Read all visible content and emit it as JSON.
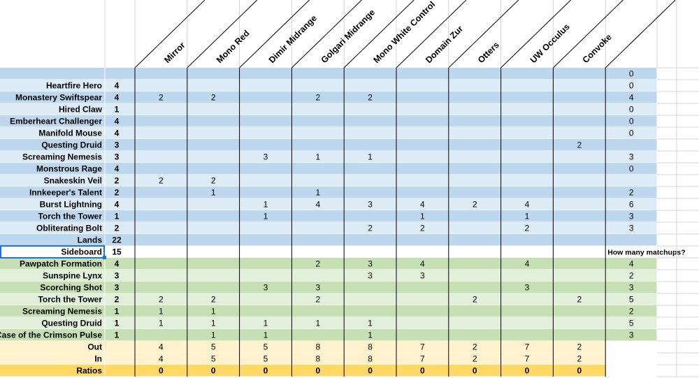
{
  "headers": [
    "Mirror",
    "Mono Red",
    "Dimir Midrange",
    "Golgari Midrange",
    "Mono White Control",
    "Domain Zur",
    "Otters",
    "UW Occulus",
    "Convoke"
  ],
  "rows": [
    {
      "label": "",
      "count": "",
      "cells": [
        "",
        "",
        "",
        "",
        "",
        "",
        "",
        "",
        ""
      ],
      "total": "0",
      "color": "blue_dark"
    },
    {
      "label": "Heartfire Hero",
      "count": "4",
      "cells": [
        "",
        "",
        "",
        "",
        "",
        "",
        "",
        "",
        ""
      ],
      "total": "0",
      "color": "blue_light"
    },
    {
      "label": "Monastery Swiftspear",
      "count": "4",
      "cells": [
        "2",
        "2",
        "",
        "2",
        "2",
        "",
        "",
        "",
        ""
      ],
      "total": "4",
      "color": "blue_dark"
    },
    {
      "label": "Hired Claw",
      "count": "1",
      "cells": [
        "",
        "",
        "",
        "",
        "",
        "",
        "",
        "",
        ""
      ],
      "total": "0",
      "color": "blue_light"
    },
    {
      "label": "Emberheart Challenger",
      "count": "4",
      "cells": [
        "",
        "",
        "",
        "",
        "",
        "",
        "",
        "",
        ""
      ],
      "total": "0",
      "color": "blue_dark"
    },
    {
      "label": "Manifold Mouse",
      "count": "4",
      "cells": [
        "",
        "",
        "",
        "",
        "",
        "",
        "",
        "",
        ""
      ],
      "total": "0",
      "color": "blue_light"
    },
    {
      "label": "Questing Druid",
      "count": "3",
      "cells": [
        "",
        "",
        "",
        "",
        "",
        "",
        "",
        "",
        "2"
      ],
      "total": "",
      "color": "blue_dark"
    },
    {
      "label": "Screaming Nemesis",
      "count": "3",
      "cells": [
        "",
        "",
        "3",
        "1",
        "1",
        "",
        "",
        "",
        ""
      ],
      "total": "3",
      "color": "blue_light"
    },
    {
      "label": "Monstrous Rage",
      "count": "4",
      "cells": [
        "",
        "",
        "",
        "",
        "",
        "",
        "",
        "",
        ""
      ],
      "total": "0",
      "color": "blue_dark"
    },
    {
      "label": "Snakeskin Veil",
      "count": "2",
      "cells": [
        "2",
        "2",
        "",
        "",
        "",
        "",
        "",
        "",
        ""
      ],
      "total": "",
      "color": "blue_light"
    },
    {
      "label": "Innkeeper's Talent",
      "count": "2",
      "cells": [
        "",
        "1",
        "",
        "1",
        "",
        "",
        "",
        "",
        ""
      ],
      "total": "2",
      "color": "blue_dark"
    },
    {
      "label": "Burst Lightning",
      "count": "4",
      "cells": [
        "",
        "",
        "1",
        "4",
        "3",
        "4",
        "2",
        "4",
        ""
      ],
      "total": "6",
      "color": "blue_light"
    },
    {
      "label": "Torch the Tower",
      "count": "1",
      "cells": [
        "",
        "",
        "1",
        "",
        "",
        "1",
        "",
        "1",
        ""
      ],
      "total": "3",
      "color": "blue_dark"
    },
    {
      "label": "Obliterating Bolt",
      "count": "2",
      "cells": [
        "",
        "",
        "",
        "",
        "2",
        "2",
        "",
        "2",
        ""
      ],
      "total": "3",
      "color": "blue_light"
    },
    {
      "label": "Lands",
      "count": "22",
      "cells": [
        "",
        "",
        "",
        "",
        "",
        "",
        "",
        "",
        ""
      ],
      "total": "",
      "color": "blue_dark"
    },
    {
      "label": "Sideboard",
      "count": "15",
      "cells": [
        "",
        "",
        "",
        "",
        "",
        "",
        "",
        "",
        ""
      ],
      "total": "How many matchups?",
      "color": "white"
    },
    {
      "label": "Pawpatch Formation",
      "count": "4",
      "cells": [
        "",
        "",
        "",
        "2",
        "3",
        "4",
        "",
        "4",
        ""
      ],
      "total": "4",
      "color": "green_dark"
    },
    {
      "label": "Sunspine Lynx",
      "count": "3",
      "cells": [
        "",
        "",
        "",
        "",
        "3",
        "3",
        "",
        "",
        ""
      ],
      "total": "2",
      "color": "green_light"
    },
    {
      "label": "Scorching Shot",
      "count": "3",
      "cells": [
        "",
        "",
        "3",
        "3",
        "",
        "",
        "",
        "3",
        ""
      ],
      "total": "3",
      "color": "green_dark"
    },
    {
      "label": "Torch the Tower",
      "count": "2",
      "cells": [
        "2",
        "2",
        "",
        "2",
        "",
        "",
        "2",
        "",
        "2"
      ],
      "total": "5",
      "color": "green_light"
    },
    {
      "label": "Screaming Nemesis",
      "count": "1",
      "cells": [
        "1",
        "1",
        "",
        "",
        "",
        "",
        "",
        "",
        ""
      ],
      "total": "2",
      "color": "green_dark"
    },
    {
      "label": "Questing Druid",
      "count": "1",
      "cells": [
        "1",
        "1",
        "1",
        "1",
        "1",
        "",
        "",
        "",
        ""
      ],
      "total": "5",
      "color": "green_light"
    },
    {
      "label": "Case of the Crimson Pulse",
      "count": "1",
      "cells": [
        "",
        "1",
        "1",
        "",
        "1",
        "",
        "",
        "",
        ""
      ],
      "total": "3",
      "color": "green_dark"
    },
    {
      "label": "Out",
      "count": "",
      "cells": [
        "4",
        "5",
        "5",
        "8",
        "8",
        "7",
        "2",
        "7",
        "2"
      ],
      "total": "",
      "color": "yellow_light"
    },
    {
      "label": "In",
      "count": "",
      "cells": [
        "4",
        "5",
        "5",
        "8",
        "8",
        "7",
        "2",
        "7",
        "2"
      ],
      "total": "",
      "color": "yellow_light"
    },
    {
      "label": "Ratios",
      "count": "",
      "cells": [
        "0",
        "0",
        "0",
        "0",
        "0",
        "0",
        "0",
        "0",
        "0"
      ],
      "total": "",
      "color": "yellow_dark"
    }
  ],
  "colors": {
    "blue_dark": "#bdd7ee",
    "blue_light": "#ddebf7",
    "green_dark": "#c6e0b4",
    "green_light": "#e2efda",
    "yellow_light": "#fff2cc",
    "yellow_dark": "#ffd966",
    "white": "#ffffff",
    "grid": "#d4d4d4",
    "border": "#000000",
    "selection": "#1a73e8"
  }
}
